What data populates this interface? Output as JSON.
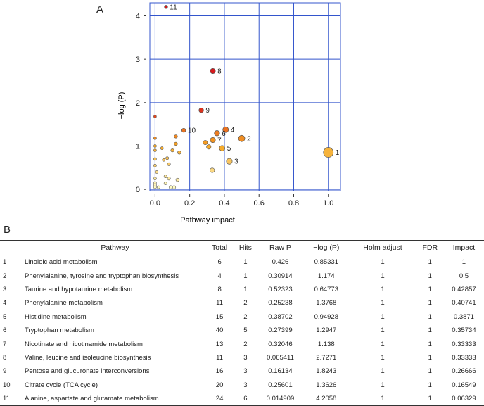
{
  "panels": {
    "a": "A",
    "b": "B"
  },
  "chart_data": {
    "type": "scatter",
    "title": "",
    "xlabel": "Pathway impact",
    "ylabel": "−log (P)",
    "xlim": [
      -0.03,
      1.07
    ],
    "ylim": [
      -0.03,
      4.3
    ],
    "xticks": [
      0,
      0.2,
      0.4,
      0.6,
      0.8,
      1.0
    ],
    "xtick_labels": [
      "0.0",
      "0.2",
      "0.4",
      "0.6",
      "0.8",
      "1.0"
    ],
    "yticks": [
      0,
      1,
      2,
      3,
      4
    ],
    "ytick_labels": [
      "0",
      "1",
      "2",
      "3",
      "4"
    ],
    "grid": true,
    "colors": {
      "grid": "#3355cc",
      "low": "#ffffcc",
      "mid": "#f5a623",
      "high": "#d7191c",
      "edge": "#555555"
    },
    "labeled_points": [
      {
        "label": "1",
        "x": 1.0,
        "y": 0.85331
      },
      {
        "label": "2",
        "x": 0.5,
        "y": 1.174
      },
      {
        "label": "3",
        "x": 0.42857,
        "y": 0.64773
      },
      {
        "label": "4",
        "x": 0.40741,
        "y": 1.3768
      },
      {
        "label": "5",
        "x": 0.3871,
        "y": 0.94928
      },
      {
        "label": "6",
        "x": 0.35734,
        "y": 1.2947
      },
      {
        "label": "7",
        "x": 0.33333,
        "y": 1.138
      },
      {
        "label": "8",
        "x": 0.33333,
        "y": 2.7271
      },
      {
        "label": "9",
        "x": 0.26666,
        "y": 1.8243
      },
      {
        "label": "10",
        "x": 0.16549,
        "y": 1.3626
      },
      {
        "label": "11",
        "x": 0.06329,
        "y": 4.2058
      }
    ],
    "other_points": [
      {
        "x": 0.0,
        "y": 1.68
      },
      {
        "x": 0.0,
        "y": 1.18
      },
      {
        "x": 0.0,
        "y": 1.0
      },
      {
        "x": 0.0,
        "y": 0.9
      },
      {
        "x": 0.0,
        "y": 0.7
      },
      {
        "x": 0.0,
        "y": 0.55
      },
      {
        "x": 0.0,
        "y": 0.25
      },
      {
        "x": 0.0,
        "y": 0.15
      },
      {
        "x": 0.0,
        "y": 0.1
      },
      {
        "x": 0.0,
        "y": 0.05
      },
      {
        "x": 0.01,
        "y": 0.4
      },
      {
        "x": 0.02,
        "y": 0.05
      },
      {
        "x": 0.04,
        "y": 0.95
      },
      {
        "x": 0.05,
        "y": 0.68
      },
      {
        "x": 0.06,
        "y": 0.3
      },
      {
        "x": 0.06,
        "y": 0.14
      },
      {
        "x": 0.07,
        "y": 0.72
      },
      {
        "x": 0.08,
        "y": 0.58
      },
      {
        "x": 0.08,
        "y": 0.25
      },
      {
        "x": 0.09,
        "y": 0.05
      },
      {
        "x": 0.1,
        "y": 0.9
      },
      {
        "x": 0.11,
        "y": 0.05
      },
      {
        "x": 0.12,
        "y": 1.22
      },
      {
        "x": 0.12,
        "y": 1.05
      },
      {
        "x": 0.13,
        "y": 0.22
      },
      {
        "x": 0.14,
        "y": 0.85
      },
      {
        "x": 0.29,
        "y": 1.08
      },
      {
        "x": 0.31,
        "y": 0.98
      },
      {
        "x": 0.33,
        "y": 0.44
      }
    ]
  },
  "table": {
    "headers": [
      "",
      "Pathway",
      "Total",
      "Hits",
      "Raw P",
      "−log (P)",
      "Holm adjust",
      "FDR",
      "Impact"
    ],
    "rows": [
      [
        "1",
        "Linoleic acid metabolism",
        "6",
        "1",
        "0.426",
        "0.85331",
        "1",
        "1",
        "1"
      ],
      [
        "2",
        "Phenylalanine, tyrosine and tryptophan biosynthesis",
        "4",
        "1",
        "0.30914",
        "1.174",
        "1",
        "1",
        "0.5"
      ],
      [
        "3",
        "Taurine and hypotaurine metabolism",
        "8",
        "1",
        "0.52323",
        "0.64773",
        "1",
        "1",
        "0.42857"
      ],
      [
        "4",
        "Phenylalanine metabolism",
        "11",
        "2",
        "0.25238",
        "1.3768",
        "1",
        "1",
        "0.40741"
      ],
      [
        "5",
        "Histidine metabolism",
        "15",
        "2",
        "0.38702",
        "0.94928",
        "1",
        "1",
        "0.3871"
      ],
      [
        "6",
        "Tryptophan metabolism",
        "40",
        "5",
        "0.27399",
        "1.2947",
        "1",
        "1",
        "0.35734"
      ],
      [
        "7",
        "Nicotinate and nicotinamide metabolism",
        "13",
        "2",
        "0.32046",
        "1.138",
        "1",
        "1",
        "0.33333"
      ],
      [
        "8",
        "Valine, leucine and isoleucine biosynthesis",
        "11",
        "3",
        "0.065411",
        "2.7271",
        "1",
        "1",
        "0.33333"
      ],
      [
        "9",
        "Pentose and glucuronate interconversions",
        "16",
        "3",
        "0.16134",
        "1.8243",
        "1",
        "1",
        "0.26666"
      ],
      [
        "10",
        "Citrate cycle (TCA cycle)",
        "20",
        "3",
        "0.25601",
        "1.3626",
        "1",
        "1",
        "0.16549"
      ],
      [
        "11",
        "Alanine, aspartate and glutamate metabolism",
        "24",
        "6",
        "0.014909",
        "4.2058",
        "1",
        "1",
        "0.06329"
      ]
    ]
  }
}
